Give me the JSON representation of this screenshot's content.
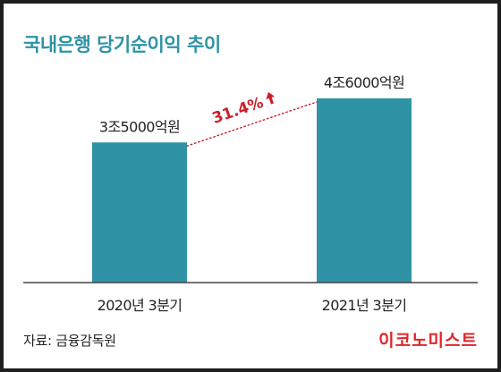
{
  "header": {
    "title": "국내은행 당기순이익 추이"
  },
  "chart_data": {
    "type": "bar",
    "title": "국내은행 당기순이익 추이",
    "categories": [
      "2020년 3분기",
      "2021년 3분기"
    ],
    "values": [
      3.5,
      4.6
    ],
    "data_labels": [
      "3조5000억원",
      "4조6000억원"
    ],
    "unit": "조원",
    "annotation": {
      "text": "31.4%",
      "arrow": "up",
      "color": "#cc1f2a"
    },
    "bar_color": "#2f93a5",
    "axis_color": "#444444",
    "ylim": [
      0,
      4.6
    ],
    "grid": false
  },
  "footer": {
    "source": "자료: 금융감독원",
    "brand": "이코노미스트"
  }
}
